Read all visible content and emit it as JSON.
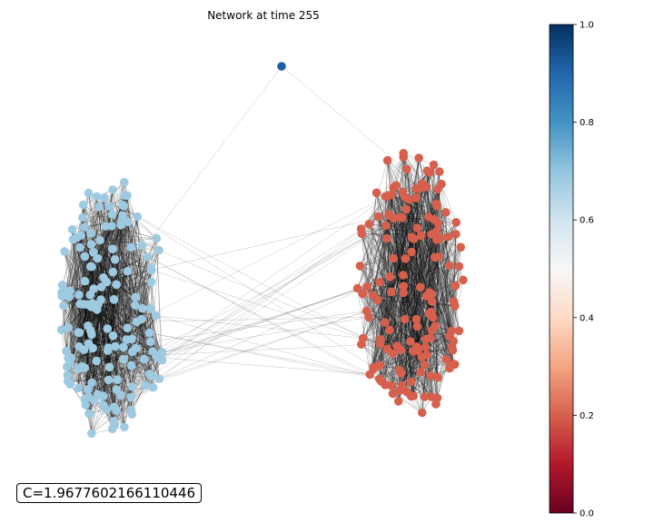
{
  "chart_data": {
    "type": "network",
    "title": "Network at time 255",
    "annotation": "C=1.9677602166110446",
    "colorbar": {
      "colormap": "RdBu",
      "vmin": 0.0,
      "vmax": 1.0,
      "ticks": [
        "0.0",
        "0.2",
        "0.4",
        "0.6",
        "0.8",
        "1.0"
      ]
    },
    "communities": [
      {
        "name": "left-cluster",
        "node_value": 0.65,
        "node_color": "#9ecae1"
      },
      {
        "name": "right-cluster",
        "node_value": 0.2,
        "node_color": "#d6604d"
      },
      {
        "name": "isolated-node",
        "node_value": 0.92,
        "node_color": "#1f5fa6"
      }
    ],
    "node_counts_estimated": {
      "left-cluster": 160,
      "right-cluster": 150,
      "isolated-node": 1
    }
  }
}
